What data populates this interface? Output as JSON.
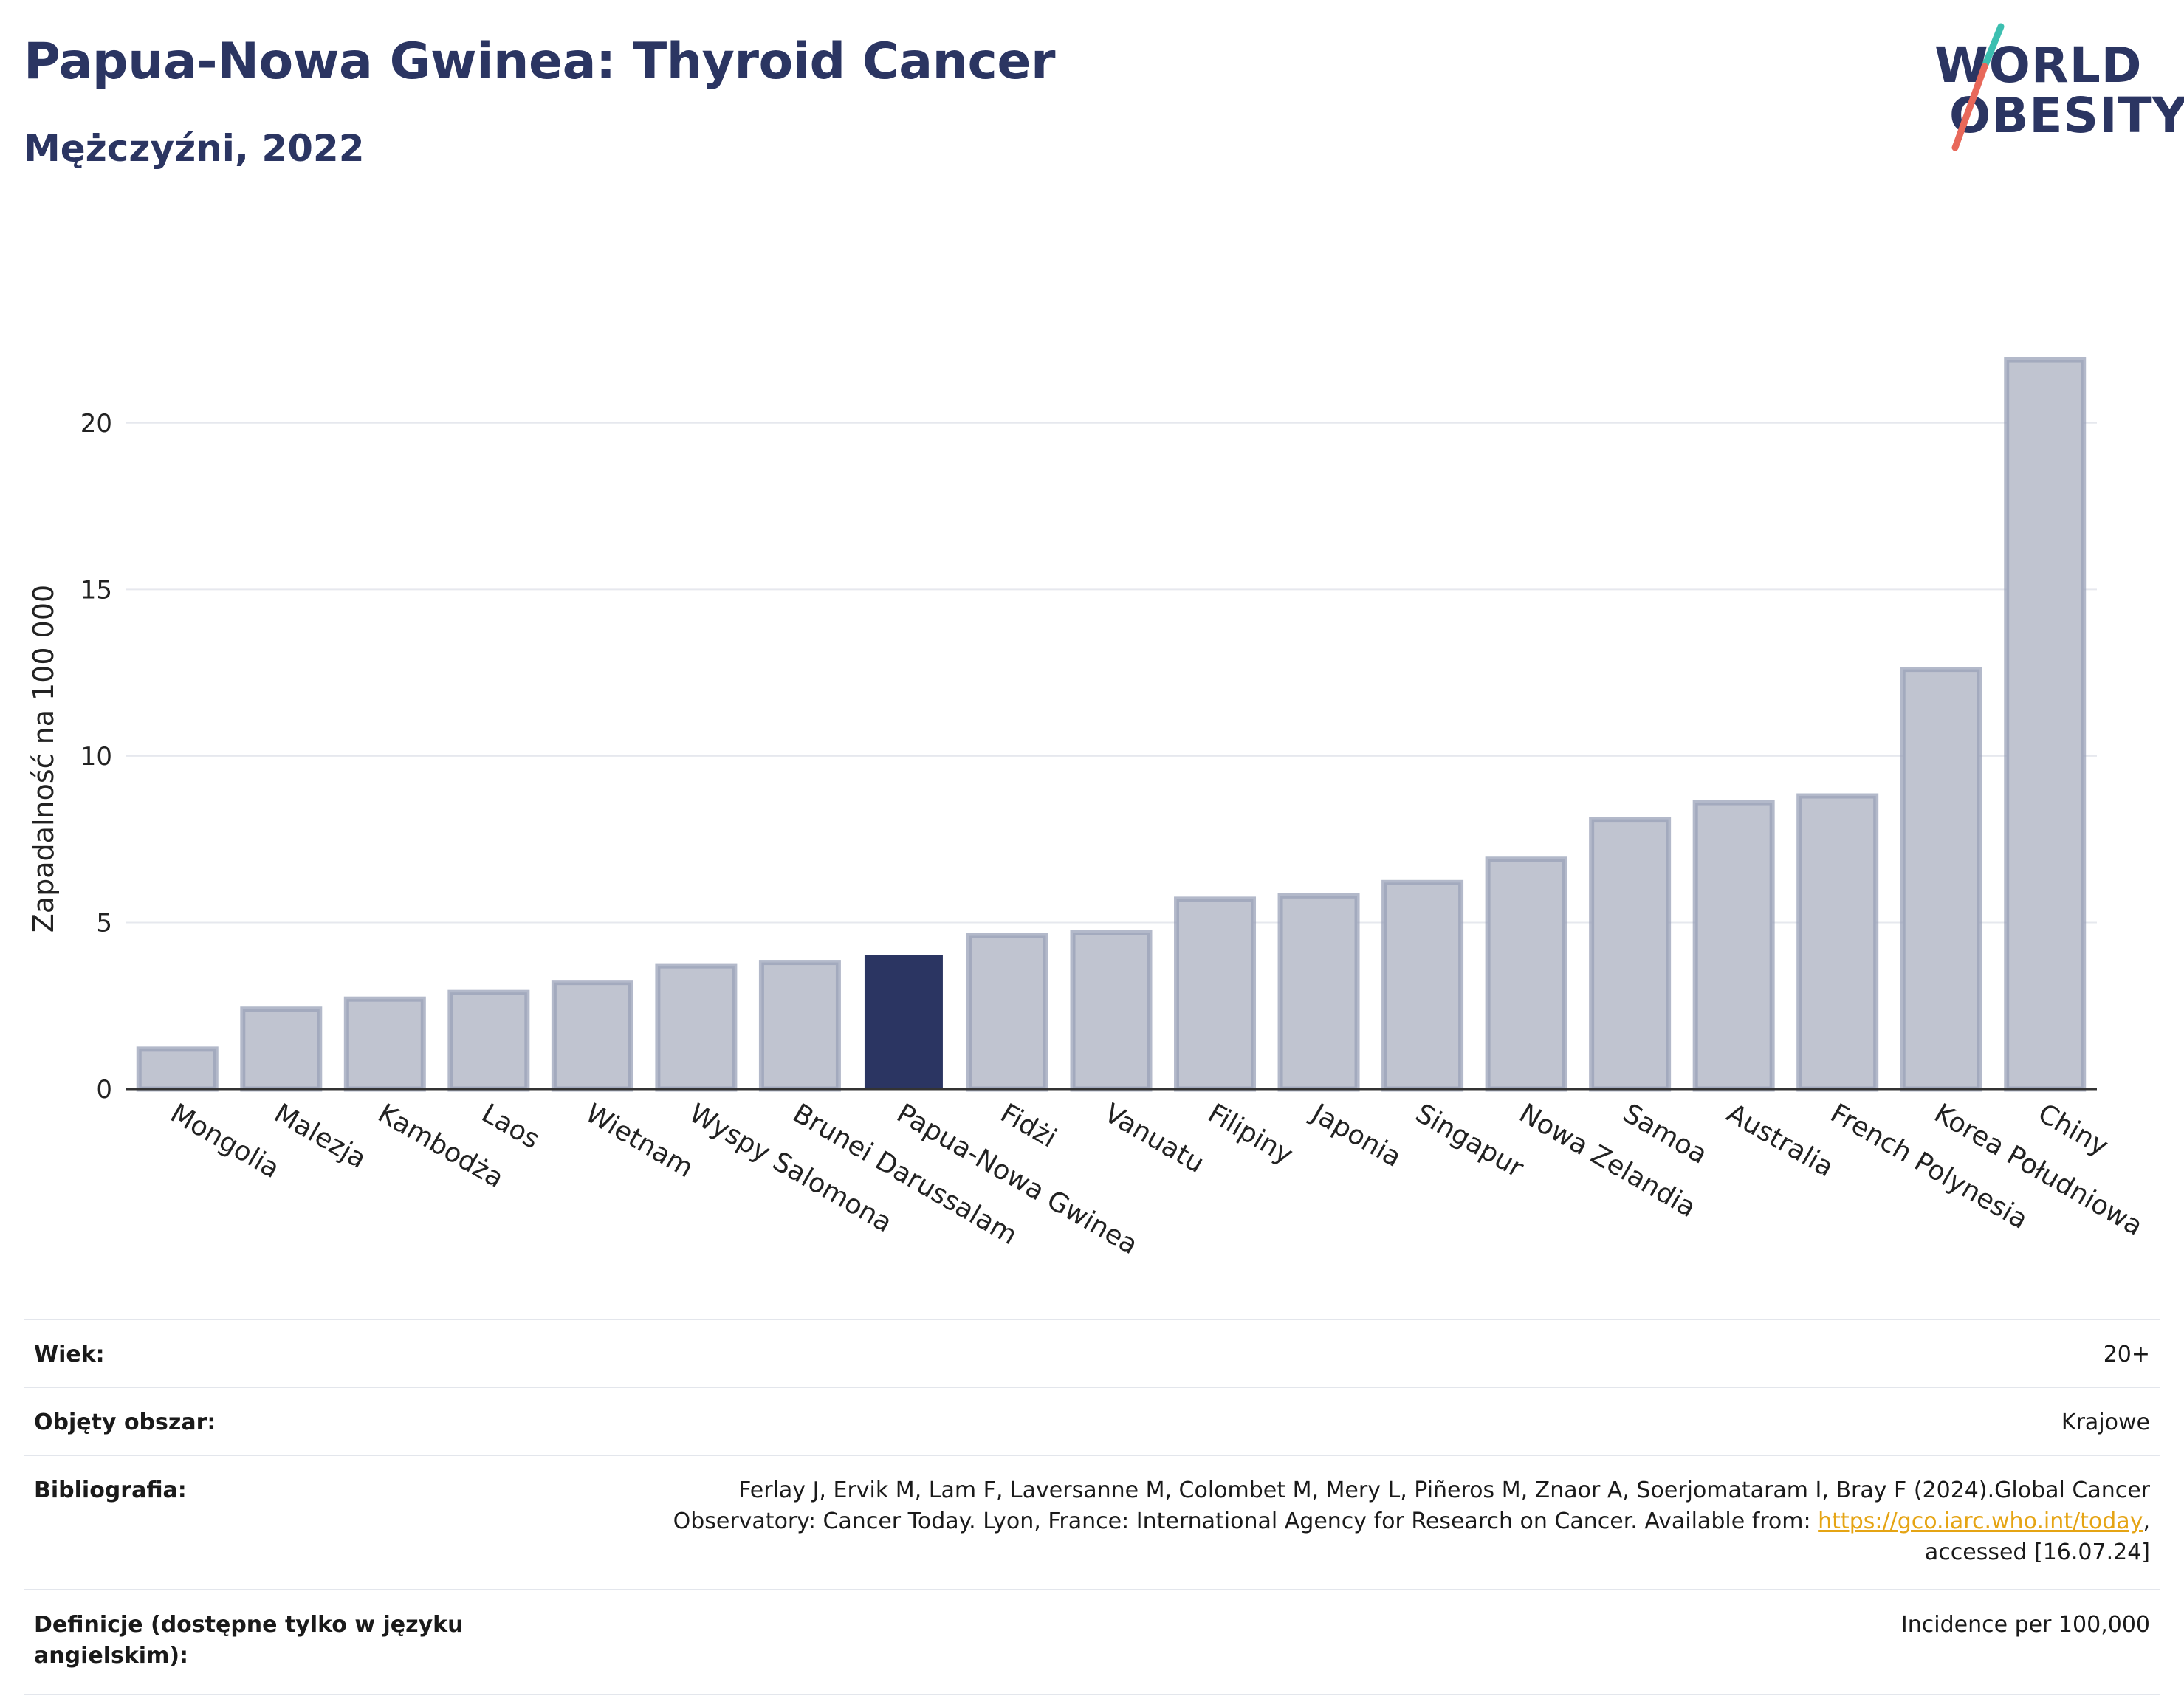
{
  "header": {
    "title": "Papua-Nowa Gwinea: Thyroid Cancer",
    "subtitle": "Mężczyźni, 2022"
  },
  "logo": {
    "line1": "WORLD",
    "line2": "OBESITY",
    "accent_colors": [
      "#3cbfb0",
      "#e8685a"
    ]
  },
  "colors": {
    "highlight": "#2b3562",
    "bar": "#c0c4d0",
    "bar_edge": "#9aa1b8",
    "grid": "#e6e8ee",
    "axis": "#333333"
  },
  "chart_data": {
    "type": "bar",
    "title": "Papua-Nowa Gwinea: Thyroid Cancer",
    "subtitle": "Mężczyźni, 2022",
    "ylabel": "Zapadalność na 100 000",
    "xlabel": "",
    "ylim": [
      0,
      22.5
    ],
    "yticks": [
      0,
      5,
      10,
      15,
      20
    ],
    "grid": true,
    "highlight": "Papua-Nowa Gwinea",
    "categories": [
      "Mongolia",
      "Malezja",
      "Kambodża",
      "Laos",
      "Wietnam",
      "Wyspy Salomona",
      "Brunei Darussalam",
      "Papua-Nowa Gwinea",
      "Fidżi",
      "Vanuatu",
      "Filipiny",
      "Japonia",
      "Singapur",
      "Nowa Zelandia",
      "Samoa",
      "Australia",
      "French Polynesia",
      "Korea Południowa",
      "Chiny"
    ],
    "values": [
      1.2,
      2.4,
      2.7,
      2.9,
      3.2,
      3.7,
      3.8,
      4.0,
      4.6,
      4.7,
      5.7,
      5.8,
      6.2,
      6.9,
      8.1,
      8.6,
      8.8,
      12.6,
      21.9
    ]
  },
  "info": {
    "age": {
      "label": "Wiek:",
      "value": "20+"
    },
    "area": {
      "label": "Objęty obszar:",
      "value": "Krajowe"
    },
    "biblio": {
      "label": "Bibliografia:",
      "line1": "Ferlay J, Ervik M, Lam F, Laversanne M, Colombet M, Mery L, Piñeros M, Znaor A, Soerjomataram I, Bray F (2024).Global Cancer",
      "line2_pre": "Observatory: Cancer Today. Lyon, France: International Agency for Research on Cancer. Available from: ",
      "link": "https://gco.iarc.who.int/today",
      "line2_post": ",",
      "line3": "accessed [16.07.24]"
    },
    "definitions": {
      "label": "Definicje (dostępne tylko w języku angielskim):",
      "value": "Incidence per 100,000"
    }
  }
}
